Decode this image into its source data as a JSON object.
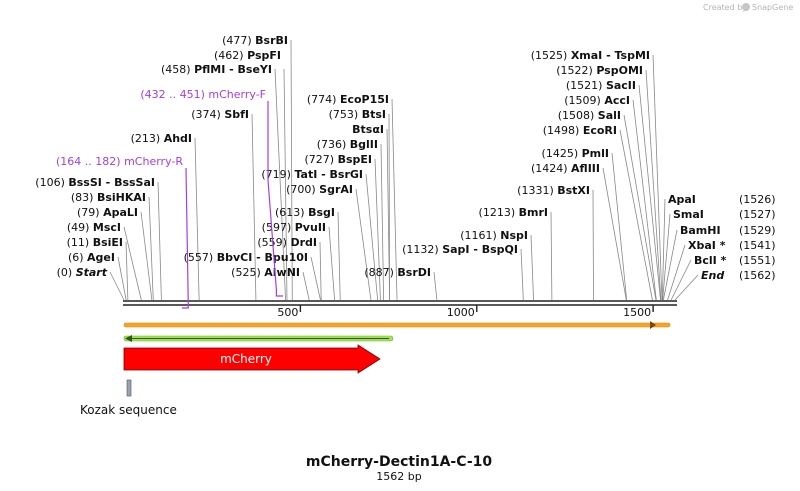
{
  "credit": {
    "created_by": "Created by",
    "brand": "SnapGene"
  },
  "plasmid": {
    "name": "mCherry-Dectin1A-C-10",
    "length_label": "1562 bp",
    "length": 1562
  },
  "axis": {
    "ticks": [
      {
        "value": 500,
        "label": "500"
      },
      {
        "value": 1000,
        "label": "1000"
      },
      {
        "value": 1500,
        "label": "1500"
      }
    ]
  },
  "left_sites": [
    {
      "pos": "(477)",
      "name": "BsrBI",
      "coord": 477
    },
    {
      "pos": "(462)",
      "name": "PspFI",
      "coord": 462
    },
    {
      "pos": "(458)",
      "name": "PflMI  -  BseYI",
      "coord": 458
    },
    {
      "pos": "(374)",
      "name": "SbfI",
      "coord": 374
    },
    {
      "pos": "(213)",
      "name": "AhdI",
      "coord": 213
    },
    {
      "pos": "(106)",
      "name": "BssSI  -  BssSaI",
      "coord": 106
    },
    {
      "pos": "(83)",
      "name": "BsiHKAI",
      "coord": 83
    },
    {
      "pos": "(79)",
      "name": "ApaLI",
      "coord": 79
    },
    {
      "pos": "(49)",
      "name": "MscI",
      "coord": 49
    },
    {
      "pos": "(11)",
      "name": "BsiEI",
      "coord": 11
    },
    {
      "pos": "(6)",
      "name": "AgeI",
      "coord": 6
    },
    {
      "pos": "(0)",
      "name": "Start",
      "coord": 0,
      "italic": true
    }
  ],
  "mid_sites": [
    {
      "pos": "(774)",
      "name": "EcoP15I",
      "coord": 774
    },
    {
      "pos": "(753)",
      "name": "BtsI",
      "coord": 753
    },
    {
      "pos": "",
      "name": "BtsαI",
      "coord": 753
    },
    {
      "pos": "(736)",
      "name": "BglII",
      "coord": 736
    },
    {
      "pos": "(727)",
      "name": "BspEI",
      "coord": 727
    },
    {
      "pos": "(719)",
      "name": "TatI  -  BsrGI",
      "coord": 719
    },
    {
      "pos": "(700)",
      "name": "SgrAI",
      "coord": 700
    },
    {
      "pos": "(613)",
      "name": "BsgI",
      "coord": 613
    },
    {
      "pos": "(597)",
      "name": "PvuII",
      "coord": 597
    },
    {
      "pos": "(559)",
      "name": "DrdI",
      "coord": 559
    },
    {
      "pos": "(557)",
      "name": "BbvCI  -  Bpu10I",
      "coord": 557
    },
    {
      "pos": "(525)",
      "name": "AlwNI",
      "coord": 525
    },
    {
      "pos": "(887)",
      "name": "BsrDI",
      "coord": 887
    },
    {
      "pos": "(1132)",
      "name": "SapI  -  BspQI",
      "coord": 1132
    }
  ],
  "right_sites": [
    {
      "pos": "(1525)",
      "name": "XmaI  -  TspMI",
      "coord": 1525
    },
    {
      "pos": "(1522)",
      "name": "PspOMI",
      "coord": 1522
    },
    {
      "pos": "(1521)",
      "name": "SacII",
      "coord": 1521
    },
    {
      "pos": "(1509)",
      "name": "AccI",
      "coord": 1509
    },
    {
      "pos": "(1508)",
      "name": "SalI",
      "coord": 1508
    },
    {
      "pos": "(1498)",
      "name": "EcoRI",
      "coord": 1498
    },
    {
      "pos": "(1425)",
      "name": "PmlI",
      "coord": 1425
    },
    {
      "pos": "(1424)",
      "name": "AflIII",
      "coord": 1424
    },
    {
      "pos": "(1331)",
      "name": "BstXI",
      "coord": 1331
    },
    {
      "pos": "(1213)",
      "name": "BmrI",
      "coord": 1213
    },
    {
      "pos": "(1161)",
      "name": "NspI",
      "coord": 1161
    }
  ],
  "end_sites": [
    {
      "name": "ApaI",
      "pos": "(1526)",
      "coord": 1526
    },
    {
      "name": "SmaI",
      "pos": "(1527)",
      "coord": 1527
    },
    {
      "name": "BamHI",
      "pos": "(1529)",
      "coord": 1529
    },
    {
      "name": "XbaI *",
      "pos": "(1541)",
      "coord": 1541
    },
    {
      "name": "BclI *",
      "pos": "(1551)",
      "coord": 1551
    },
    {
      "name": "End",
      "pos": "(1562)",
      "coord": 1562,
      "italic": true
    }
  ],
  "primers": [
    {
      "range": "(432 .. 451)",
      "name": "mCherry-F",
      "start": 432,
      "end": 451
    },
    {
      "range": "(164 .. 182)",
      "name": "mCherry-R",
      "start": 164,
      "end": 182
    }
  ],
  "features": {
    "mcherry": {
      "label": "mCherry",
      "color": "#ff0000",
      "start": 0,
      "end": 725
    },
    "kozak": {
      "label": "Kozak sequence",
      "color": "#9aa4b0",
      "start": 0,
      "end": 10
    },
    "orange_orf": {
      "color": "#f5a623",
      "start": 0,
      "end": 1548
    },
    "green_orf": {
      "color": "#a6e05a",
      "start": 0,
      "end": 762
    }
  },
  "colors": {
    "primer": "#a33fe0",
    "line": "#333333",
    "leader": "#888888"
  }
}
